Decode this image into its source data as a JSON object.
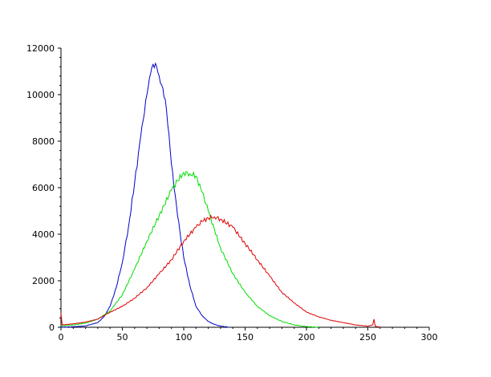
{
  "chart_data": {
    "type": "line",
    "title": "",
    "xlabel": "",
    "ylabel": "",
    "xlim": [
      0,
      300
    ],
    "ylim": [
      0,
      12000
    ],
    "x_ticks": [
      0,
      50,
      100,
      150,
      200,
      250,
      300
    ],
    "y_ticks": [
      0,
      2000,
      4000,
      6000,
      8000,
      10000,
      12000
    ],
    "x_tick_labels": [
      "0",
      "50",
      "100",
      "150",
      "200",
      "250",
      "300"
    ],
    "y_tick_labels": [
      "0",
      "2000",
      "4000",
      "6000",
      "8000",
      "10000",
      "12000"
    ],
    "grid": false,
    "legend": "none",
    "series": [
      {
        "color": "#0000cc",
        "points": [
          [
            0,
            0
          ],
          [
            10,
            20
          ],
          [
            20,
            60
          ],
          [
            30,
            200
          ],
          [
            35,
            450
          ],
          [
            40,
            900
          ],
          [
            45,
            1700
          ],
          [
            50,
            2800
          ],
          [
            55,
            4300
          ],
          [
            60,
            6200
          ],
          [
            65,
            8200
          ],
          [
            70,
            10000
          ],
          [
            73,
            10900
          ],
          [
            75,
            11300
          ],
          [
            78,
            11200
          ],
          [
            80,
            10800
          ],
          [
            85,
            9800
          ],
          [
            88,
            8300
          ],
          [
            90,
            7000
          ],
          [
            95,
            4800
          ],
          [
            100,
            3000
          ],
          [
            105,
            1800
          ],
          [
            110,
            900
          ],
          [
            115,
            500
          ],
          [
            120,
            250
          ],
          [
            125,
            120
          ],
          [
            130,
            50
          ],
          [
            137,
            0
          ]
        ]
      },
      {
        "color": "#00dd00",
        "points": [
          [
            0,
            50
          ],
          [
            10,
            100
          ],
          [
            20,
            180
          ],
          [
            30,
            350
          ],
          [
            40,
            700
          ],
          [
            50,
            1400
          ],
          [
            60,
            2500
          ],
          [
            70,
            3700
          ],
          [
            80,
            4800
          ],
          [
            90,
            5900
          ],
          [
            95,
            6300
          ],
          [
            100,
            6650
          ],
          [
            105,
            6600
          ],
          [
            110,
            6500
          ],
          [
            115,
            5800
          ],
          [
            120,
            5000
          ],
          [
            125,
            4200
          ],
          [
            130,
            3400
          ],
          [
            140,
            2300
          ],
          [
            150,
            1500
          ],
          [
            160,
            900
          ],
          [
            170,
            500
          ],
          [
            180,
            250
          ],
          [
            190,
            100
          ],
          [
            200,
            30
          ],
          [
            210,
            0
          ]
        ]
      },
      {
        "color": "#dd0000",
        "points": [
          [
            0,
            600
          ],
          [
            1,
            100
          ],
          [
            10,
            150
          ],
          [
            20,
            220
          ],
          [
            30,
            350
          ],
          [
            40,
            650
          ],
          [
            50,
            900
          ],
          [
            60,
            1250
          ],
          [
            70,
            1700
          ],
          [
            80,
            2300
          ],
          [
            90,
            2900
          ],
          [
            100,
            3700
          ],
          [
            110,
            4300
          ],
          [
            115,
            4550
          ],
          [
            120,
            4700
          ],
          [
            125,
            4750
          ],
          [
            130,
            4650
          ],
          [
            140,
            4300
          ],
          [
            150,
            3600
          ],
          [
            160,
            2900
          ],
          [
            170,
            2200
          ],
          [
            180,
            1500
          ],
          [
            190,
            1050
          ],
          [
            200,
            650
          ],
          [
            210,
            450
          ],
          [
            220,
            300
          ],
          [
            230,
            200
          ],
          [
            240,
            100
          ],
          [
            250,
            50
          ],
          [
            254,
            100
          ],
          [
            255,
            350
          ],
          [
            256,
            50
          ],
          [
            260,
            0
          ]
        ]
      }
    ]
  }
}
